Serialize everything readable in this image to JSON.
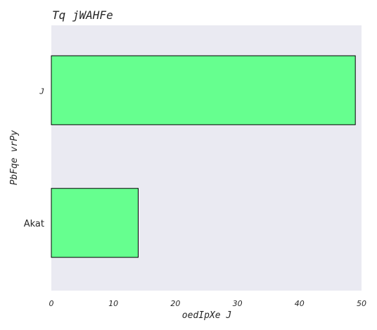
{
  "chart_data": {
    "type": "bar",
    "orientation": "horizontal",
    "title": "Tq jWAHFe",
    "xlabel": "oedIpXe J",
    "ylabel": "PbFqe vrPy",
    "categories": [
      "J",
      "Akat"
    ],
    "values": [
      49,
      14
    ],
    "xlim": [
      0,
      50
    ],
    "xticks": [
      0,
      10,
      20,
      30,
      40,
      50
    ],
    "grid": false,
    "bar_color": "#66ff8f",
    "edge_color": "#000000",
    "plot_background": "#eaeaf2"
  }
}
